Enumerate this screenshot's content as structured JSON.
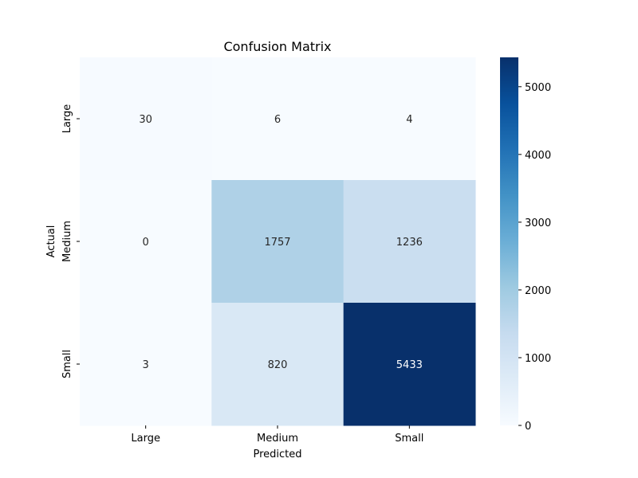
{
  "chart_data": {
    "type": "heatmap",
    "title": "Confusion Matrix",
    "xlabel": "Predicted",
    "ylabel": "Actual",
    "x_categories": [
      "Large",
      "Medium",
      "Small"
    ],
    "y_categories": [
      "Large",
      "Medium",
      "Small"
    ],
    "values": [
      [
        30,
        6,
        4
      ],
      [
        0,
        1757,
        1236
      ],
      [
        3,
        820,
        5433
      ]
    ],
    "colormap": "Blues",
    "colorbar": {
      "vmin": 0,
      "vmax": 5433,
      "ticks": [
        0,
        1000,
        2000,
        3000,
        4000,
        5000
      ]
    }
  }
}
